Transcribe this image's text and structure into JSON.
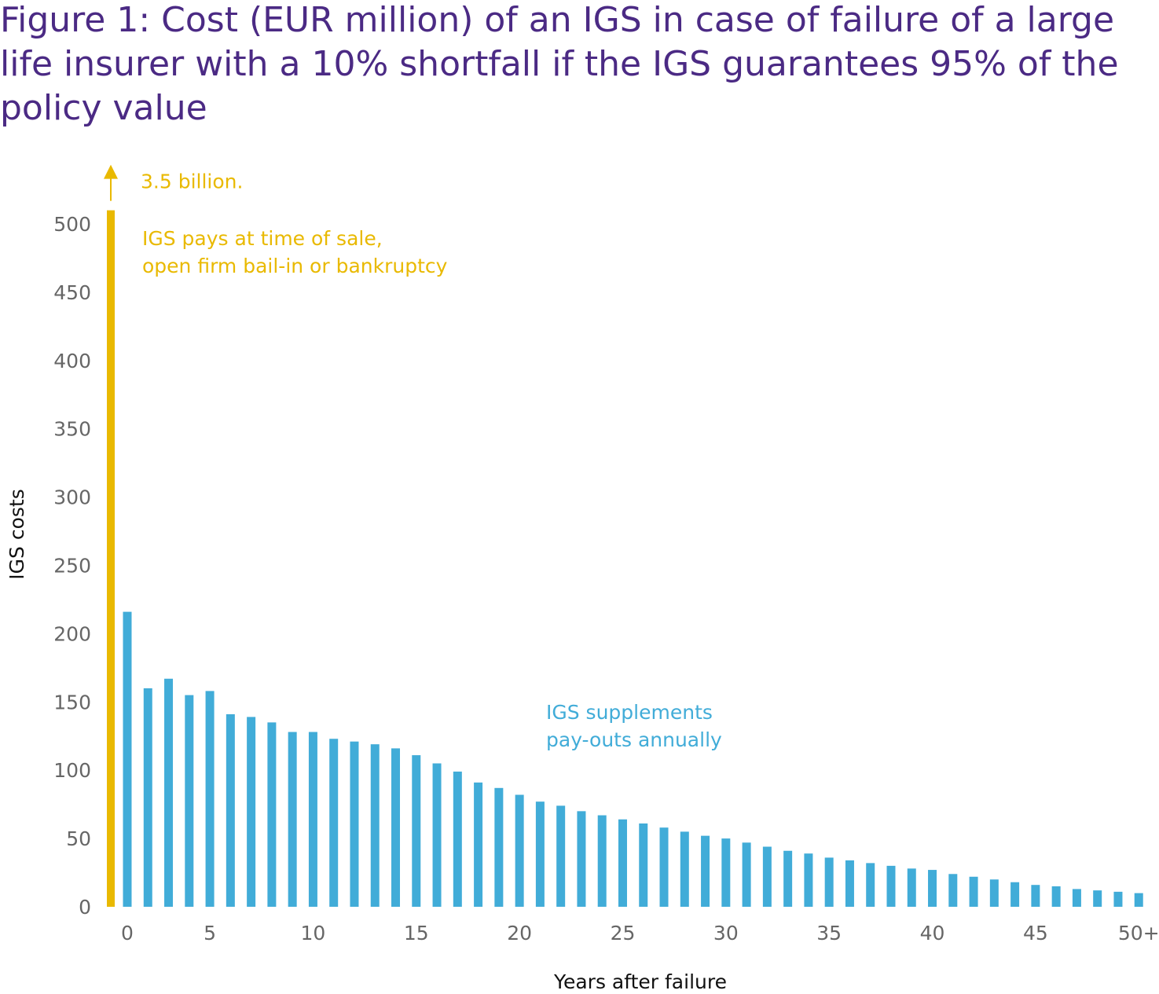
{
  "chart_data": {
    "type": "bar",
    "title": [
      "Figure 1:  Cost (EUR million) of an IGS in case of failure of a large",
      "life insurer with a 10% shortfall if the IGS guarantees 95% of the",
      "policy value"
    ],
    "y_label": "IGS costs",
    "x_label": "Years after failure",
    "categories": [
      "0",
      null,
      null,
      null,
      "5",
      null,
      null,
      null,
      null,
      "10",
      null,
      null,
      null,
      null,
      "15",
      null,
      null,
      null,
      null,
      "20",
      null,
      null,
      null,
      null,
      "25",
      null,
      null,
      null,
      null,
      "30",
      null,
      null,
      null,
      null,
      "35",
      null,
      null,
      null,
      null,
      "40",
      null,
      null,
      null,
      null,
      "45",
      null,
      null,
      null,
      null,
      "50+"
    ],
    "values": [
      216,
      160,
      167,
      155,
      158,
      141,
      139,
      135,
      128,
      128,
      123,
      121,
      119,
      116,
      111,
      105,
      99,
      91,
      87,
      82,
      77,
      74,
      70,
      67,
      64,
      61,
      58,
      55,
      52,
      50,
      47,
      44,
      41,
      39,
      36,
      34,
      32,
      30,
      28,
      27,
      24,
      22,
      20,
      18,
      16,
      15,
      13,
      12,
      11,
      10
    ],
    "color": "#41acd8",
    "lead_bar": {
      "values": [
        3500
      ],
      "value_labels": [
        "3.5 billion."
      ],
      "color": "#e9b900"
    },
    "annotations": [
      {
        "lines": [
          "IGS pays at time of sale,",
          "open firm bail-in or bankruptcy"
        ],
        "color": "#e9b900"
      },
      {
        "lines": [
          "IGS supplements",
          "pay-outs annually"
        ],
        "color": "#41acd8"
      }
    ],
    "ylim": [
      0,
      510
    ],
    "yticks": [
      0,
      50,
      100,
      150,
      200,
      250,
      300,
      350,
      400,
      450,
      500
    ],
    "grid": false
  }
}
